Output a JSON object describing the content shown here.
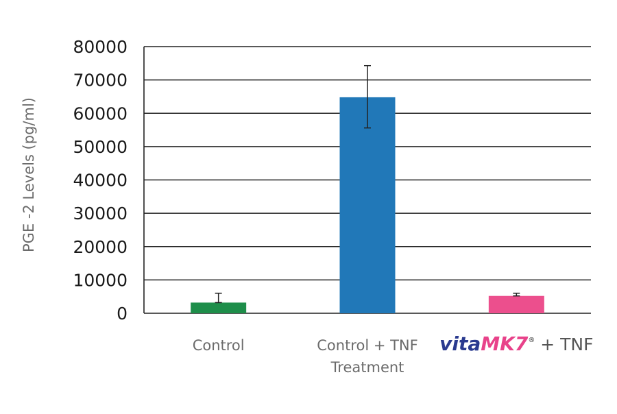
{
  "chart_data": {
    "type": "bar",
    "title": "",
    "ylabel": "PGE -2 Levels (pg/ml)",
    "xlabel": "",
    "ylim": [
      0,
      80000
    ],
    "yticks": [
      0,
      10000,
      20000,
      30000,
      40000,
      50000,
      60000,
      70000,
      80000
    ],
    "grid": true,
    "categories": [
      {
        "lines": [
          "Control"
        ]
      },
      {
        "lines": [
          "Control + TNF",
          "Treatment"
        ]
      },
      {
        "brand_a": "vita",
        "brand_b": "MK7",
        "reg": "®",
        "suffix": " + TNF"
      }
    ],
    "values": [
      3200,
      64800,
      5200
    ],
    "error_upper": [
      6000,
      74300,
      6000
    ],
    "error_lower": [
      3200,
      55600,
      5200
    ],
    "colors": [
      "#1e8e4a",
      "#2178b8",
      "#ec4f8d"
    ],
    "brand_colors": {
      "vita": "#2a3a8f",
      "mk7": "#e8428a"
    }
  }
}
